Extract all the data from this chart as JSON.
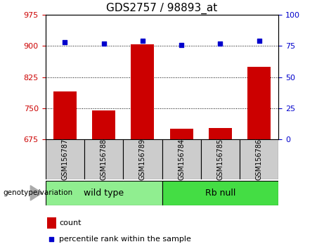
{
  "title": "GDS2757 / 98893_at",
  "categories": [
    "GSM156787",
    "GSM156788",
    "GSM156789",
    "GSM156784",
    "GSM156785",
    "GSM156786"
  ],
  "bar_values": [
    790,
    745,
    905,
    700,
    703,
    850
  ],
  "scatter_values": [
    78,
    77,
    79,
    76,
    77,
    79
  ],
  "bar_color": "#cc0000",
  "scatter_color": "#0000cc",
  "ylim_left": [
    675,
    975
  ],
  "ylim_right": [
    0,
    100
  ],
  "yticks_left": [
    675,
    750,
    825,
    900,
    975
  ],
  "yticks_right": [
    0,
    25,
    50,
    75,
    100
  ],
  "hlines": [
    750,
    825,
    900
  ],
  "groups": [
    {
      "label": "wild type",
      "indices": [
        0,
        1,
        2
      ],
      "color": "#90ee90"
    },
    {
      "label": "Rb null",
      "indices": [
        3,
        4,
        5
      ],
      "color": "#44dd44"
    }
  ],
  "group_label": "genotype/variation",
  "legend_count_label": "count",
  "legend_pct_label": "percentile rank within the sample",
  "bar_width": 0.6,
  "title_fontsize": 11,
  "tick_label_color_left": "#cc0000",
  "tick_label_color_right": "#0000cc",
  "gray_box_color": "#cccccc",
  "sample_box_border": "#888888"
}
